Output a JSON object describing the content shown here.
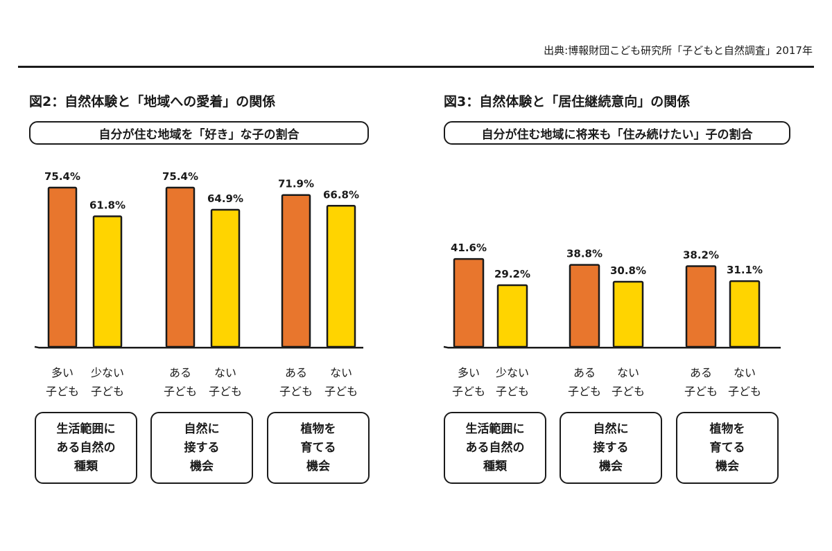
{
  "source": "出典:博報財団こども研究所「子どもと自然調査」2017年",
  "colors": {
    "primary": "#e8762d",
    "secondary": "#ffd400",
    "outline": "#1a1a1a"
  },
  "panels": [
    {
      "title": "図2：自然体験と「地域への愛着」の関係",
      "subtitle": "自分が住む地域を「好き」な子の割合",
      "groups": [
        {
          "lines": [
            "生活範囲に",
            "ある自然の",
            "種類"
          ]
        },
        {
          "lines": [
            "自然に",
            "接する",
            "機会"
          ]
        },
        {
          "lines": [
            "植物を",
            "育てる",
            "機会"
          ]
        }
      ]
    },
    {
      "title": "図3：自然体験と「居住継続意向」の関係",
      "subtitle": "自分が住む地域に将来も「住み続けたい」子の割合",
      "groups": [
        {
          "lines": [
            "生活範囲に",
            "ある自然の",
            "種類"
          ]
        },
        {
          "lines": [
            "自然に",
            "接する",
            "機会"
          ]
        },
        {
          "lines": [
            "植物を",
            "育てる",
            "機会"
          ]
        }
      ]
    }
  ],
  "chart_data": [
    {
      "type": "bar",
      "title": "図2：自然体験と「地域への愛着」の関係",
      "subtitle": "自分が住む地域を「好き」な子の割合",
      "ylim": [
        0,
        80
      ],
      "groups": [
        "生活範囲にある自然の種類",
        "自然に接する機会",
        "植物を育てる機会"
      ],
      "bars": [
        {
          "group": 0,
          "category": [
            "多い",
            "子ども"
          ],
          "value": 75.4,
          "label": "75.4%",
          "color": "#e8762d"
        },
        {
          "group": 0,
          "category": [
            "少ない",
            "子ども"
          ],
          "value": 61.8,
          "label": "61.8%",
          "color": "#ffd400"
        },
        {
          "group": 1,
          "category": [
            "ある",
            "子ども"
          ],
          "value": 75.4,
          "label": "75.4%",
          "color": "#e8762d"
        },
        {
          "group": 1,
          "category": [
            "ない",
            "子ども"
          ],
          "value": 64.9,
          "label": "64.9%",
          "color": "#ffd400"
        },
        {
          "group": 2,
          "category": [
            "ある",
            "子ども"
          ],
          "value": 71.9,
          "label": "71.9%",
          "color": "#e8762d"
        },
        {
          "group": 2,
          "category": [
            "ない",
            "子ども"
          ],
          "value": 66.8,
          "label": "66.8%",
          "color": "#ffd400"
        }
      ]
    },
    {
      "type": "bar",
      "title": "図3：自然体験と「居住継続意向」の関係",
      "subtitle": "自分が住む地域に将来も「住み続けたい」子の割合",
      "ylim": [
        0,
        80
      ],
      "groups": [
        "生活範囲にある自然の種類",
        "自然に接する機会",
        "植物を育てる機会"
      ],
      "bars": [
        {
          "group": 0,
          "category": [
            "多い",
            "子ども"
          ],
          "value": 41.6,
          "label": "41.6%",
          "color": "#e8762d"
        },
        {
          "group": 0,
          "category": [
            "少ない",
            "子ども"
          ],
          "value": 29.2,
          "label": "29.2%",
          "color": "#ffd400"
        },
        {
          "group": 1,
          "category": [
            "ある",
            "子ども"
          ],
          "value": 38.8,
          "label": "38.8%",
          "color": "#e8762d"
        },
        {
          "group": 1,
          "category": [
            "ない",
            "子ども"
          ],
          "value": 30.8,
          "label": "30.8%",
          "color": "#ffd400"
        },
        {
          "group": 2,
          "category": [
            "ある",
            "子ども"
          ],
          "value": 38.2,
          "label": "38.2%",
          "color": "#e8762d"
        },
        {
          "group": 2,
          "category": [
            "ない",
            "子ども"
          ],
          "value": 31.1,
          "label": "31.1%",
          "color": "#ffd400"
        }
      ]
    }
  ]
}
